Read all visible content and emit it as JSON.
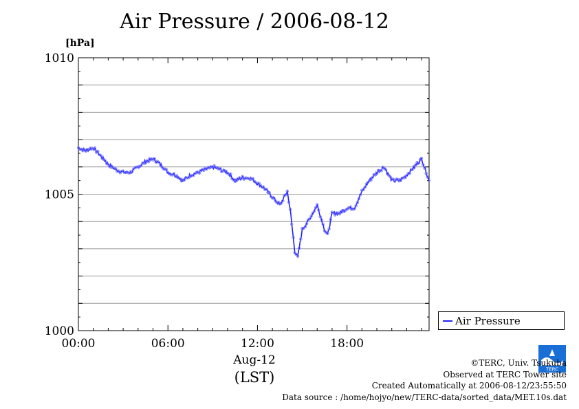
{
  "header": {
    "title": "Air Pressure / 2006-08-12",
    "unit": "[hPa]"
  },
  "x_axis": {
    "date_label": "Aug-12",
    "tz_label": "(LST)"
  },
  "legend": {
    "label": "Air Pressure"
  },
  "credits": {
    "copyright": "©TERC, Univ. Tsukuba",
    "site": "Observed at TERC Tower site",
    "created": "Created Automatically at 2006-08-12/23:55:50",
    "source": "Data source : /home/hojyo/new/TERC-data/sorted_data/MET.10s.dat"
  },
  "logo": {
    "text": "TERC"
  },
  "colors": {
    "series": "#2020ff",
    "grid": "#999999",
    "axis": "#000000"
  },
  "chart_data": {
    "type": "line",
    "title": "Air Pressure / 2006-08-12",
    "ylabel": "[hPa]",
    "xlabel": "Aug-12 (LST)",
    "xlim": [
      0,
      23.5
    ],
    "ylim": [
      1000,
      1010
    ],
    "x_ticks": [
      {
        "value": 0,
        "label": "00:00"
      },
      {
        "value": 6,
        "label": "06:00"
      },
      {
        "value": 12,
        "label": "12:00"
      },
      {
        "value": 18,
        "label": "18:00"
      }
    ],
    "y_ticks": [
      {
        "value": 1000,
        "label": "1000"
      },
      {
        "value": 1005,
        "label": "1005"
      },
      {
        "value": 1010,
        "label": "1010"
      }
    ],
    "grid": true,
    "legend": "right-bottom",
    "series": [
      {
        "name": "Air Pressure",
        "x": [
          0,
          0.5,
          1.0,
          1.5,
          2.0,
          2.5,
          3.0,
          3.5,
          4.0,
          4.5,
          5.0,
          5.5,
          6.0,
          6.5,
          7.0,
          7.5,
          8.0,
          8.5,
          9.0,
          9.5,
          10.0,
          10.5,
          11.0,
          11.5,
          12.0,
          12.5,
          13.0,
          13.5,
          14.0,
          14.2,
          14.5,
          14.7,
          15.0,
          15.5,
          16.0,
          16.5,
          16.7,
          17.0,
          17.5,
          18.0,
          18.5,
          19.0,
          19.5,
          20.0,
          20.5,
          21.0,
          21.5,
          22.0,
          22.5,
          23.0,
          23.5
        ],
        "y": [
          1006.7,
          1006.6,
          1006.7,
          1006.4,
          1006.1,
          1005.9,
          1005.8,
          1005.8,
          1006.0,
          1006.2,
          1006.3,
          1006.1,
          1005.8,
          1005.7,
          1005.5,
          1005.7,
          1005.8,
          1005.9,
          1006.0,
          1005.9,
          1005.8,
          1005.5,
          1005.6,
          1005.6,
          1005.4,
          1005.2,
          1004.9,
          1004.6,
          1005.1,
          1004.4,
          1002.9,
          1002.7,
          1003.7,
          1004.1,
          1004.6,
          1003.7,
          1003.5,
          1004.3,
          1004.3,
          1004.5,
          1004.5,
          1005.1,
          1005.5,
          1005.8,
          1006.0,
          1005.5,
          1005.5,
          1005.7,
          1006.0,
          1006.3,
          1005.5
        ]
      }
    ]
  }
}
